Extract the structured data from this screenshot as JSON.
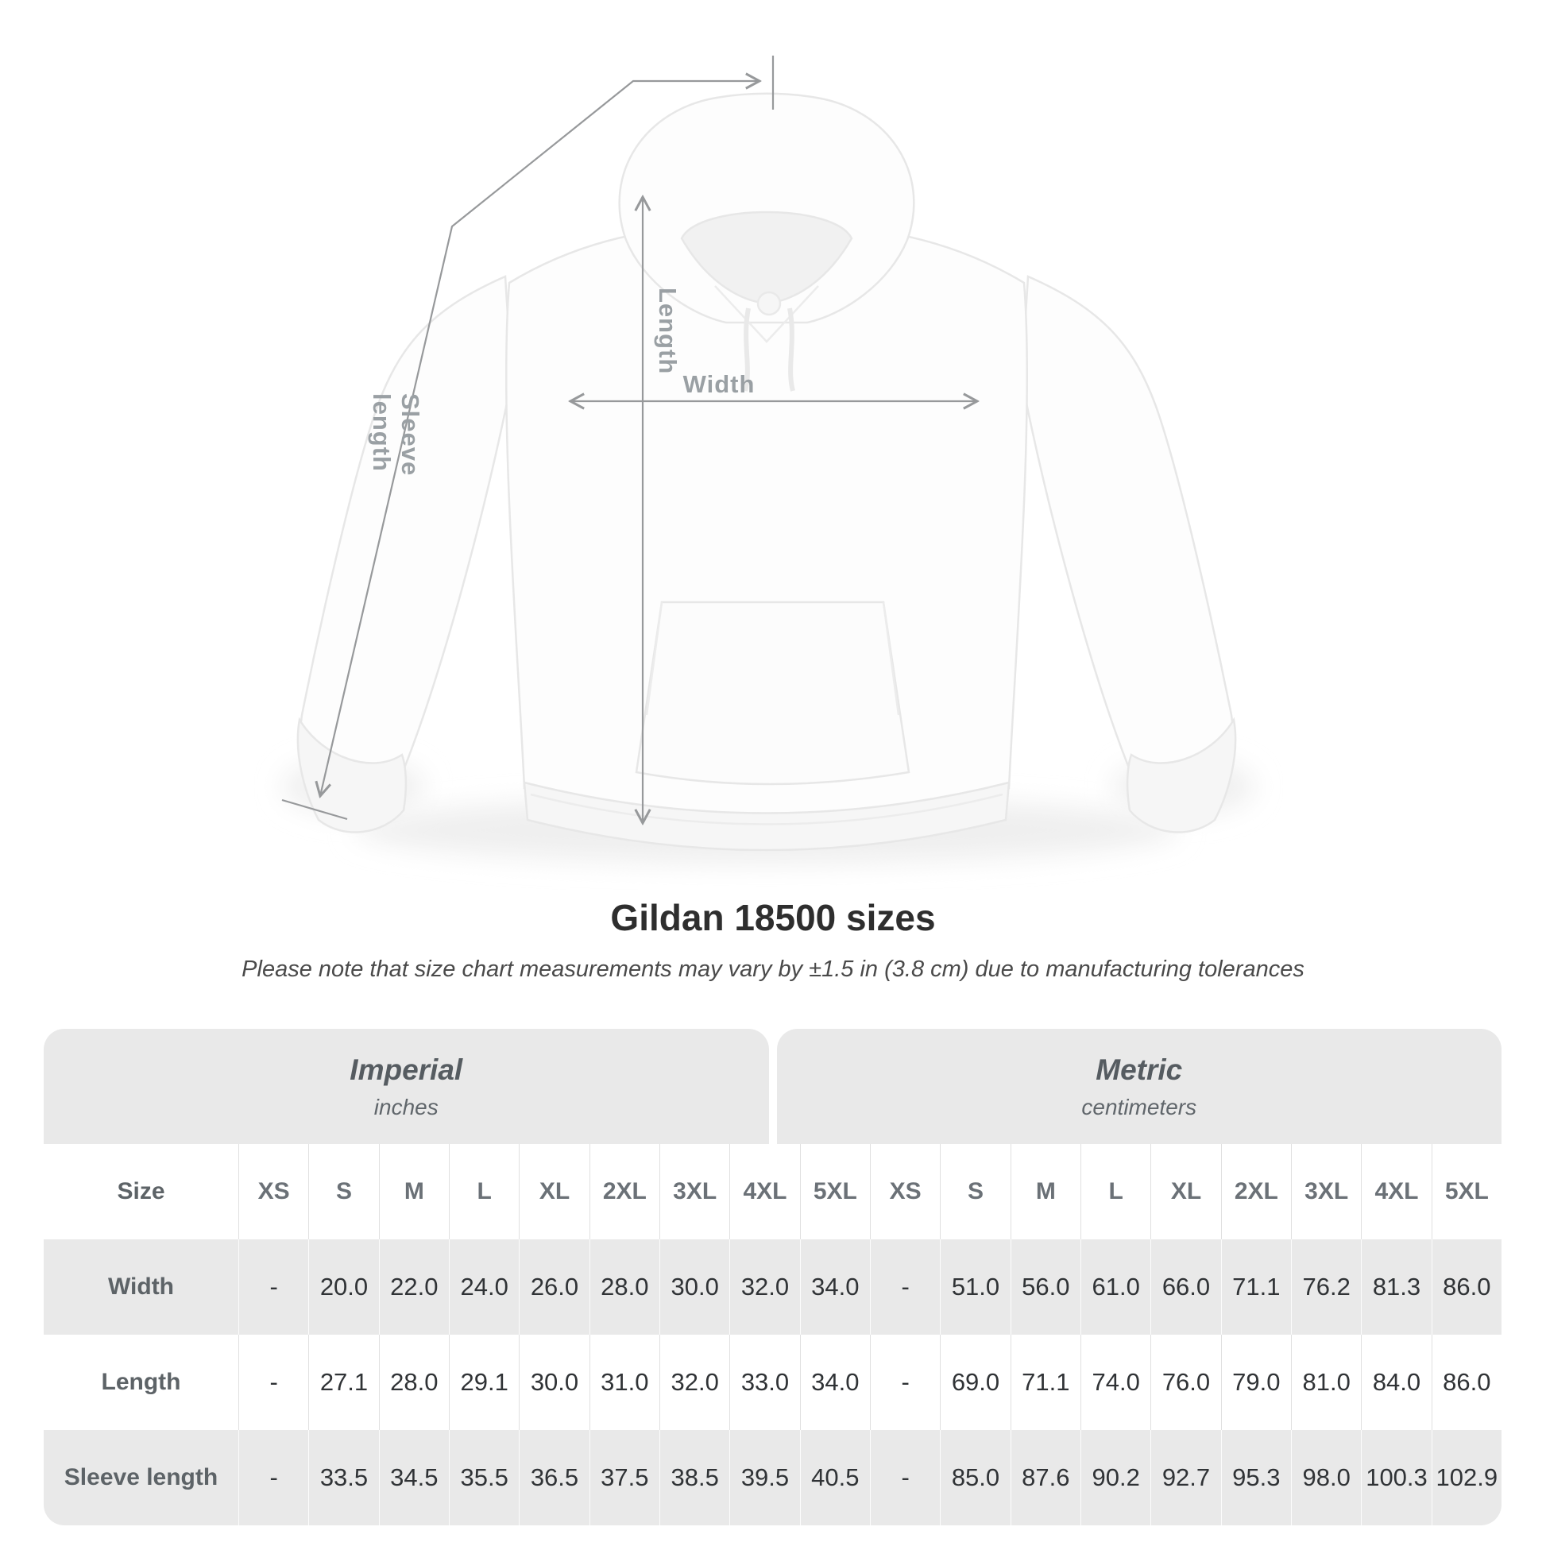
{
  "title": "Gildan 18500 sizes",
  "subtitle": "Please note that size chart measurements may vary by ±1.5 in (3.8 cm) due to manufacturing tolerances",
  "diagram": {
    "product": "white pullover hoodie (flat lay, front view)",
    "length_label": "Length",
    "width_label": "Width",
    "sleeve_label": "Sleeve length"
  },
  "table": {
    "size_header": "Size",
    "unit_groups": [
      {
        "name": "Imperial",
        "unit": "inches"
      },
      {
        "name": "Metric",
        "unit": "centimeters"
      }
    ],
    "sizes": [
      "XS",
      "S",
      "M",
      "L",
      "XL",
      "2XL",
      "3XL",
      "4XL",
      "5XL"
    ],
    "rows": [
      {
        "label": "Width",
        "imperial": [
          "-",
          "20.0",
          "22.0",
          "24.0",
          "26.0",
          "28.0",
          "30.0",
          "32.0",
          "34.0"
        ],
        "metric": [
          "-",
          "51.0",
          "56.0",
          "61.0",
          "66.0",
          "71.1",
          "76.2",
          "81.3",
          "86.0"
        ]
      },
      {
        "label": "Length",
        "imperial": [
          "-",
          "27.1",
          "28.0",
          "29.1",
          "30.0",
          "31.0",
          "32.0",
          "33.0",
          "34.0"
        ],
        "metric": [
          "-",
          "69.0",
          "71.1",
          "74.0",
          "76.0",
          "79.0",
          "81.0",
          "84.0",
          "86.0"
        ]
      },
      {
        "label": "Sleeve length",
        "imperial": [
          "-",
          "33.5",
          "34.5",
          "35.5",
          "36.5",
          "37.5",
          "38.5",
          "39.5",
          "40.5"
        ],
        "metric": [
          "-",
          "85.0",
          "87.6",
          "90.2",
          "92.7",
          "95.3",
          "98.0",
          "100.3",
          "102.9"
        ]
      }
    ]
  },
  "chart_data": {
    "type": "table",
    "title": "Gildan 18500 sizes",
    "note": "Please note that size chart measurements may vary by ±1.5 in (3.8 cm) due to manufacturing tolerances",
    "column_groups": [
      "Imperial (inches)",
      "Metric (centimeters)"
    ],
    "columns": [
      "XS",
      "S",
      "M",
      "L",
      "XL",
      "2XL",
      "3XL",
      "4XL",
      "5XL"
    ],
    "series": [
      {
        "name": "Width (in)",
        "values": [
          null,
          20.0,
          22.0,
          24.0,
          26.0,
          28.0,
          30.0,
          32.0,
          34.0
        ]
      },
      {
        "name": "Length (in)",
        "values": [
          null,
          27.1,
          28.0,
          29.1,
          30.0,
          31.0,
          32.0,
          33.0,
          34.0
        ]
      },
      {
        "name": "Sleeve length (in)",
        "values": [
          null,
          33.5,
          34.5,
          35.5,
          36.5,
          37.5,
          38.5,
          39.5,
          40.5
        ]
      },
      {
        "name": "Width (cm)",
        "values": [
          null,
          51.0,
          56.0,
          61.0,
          66.0,
          71.1,
          76.2,
          81.3,
          86.0
        ]
      },
      {
        "name": "Length (cm)",
        "values": [
          null,
          69.0,
          71.1,
          74.0,
          76.0,
          79.0,
          81.0,
          84.0,
          86.0
        ]
      },
      {
        "name": "Sleeve length (cm)",
        "values": [
          null,
          85.0,
          87.6,
          90.2,
          92.7,
          95.3,
          98.0,
          100.3,
          102.9
        ]
      }
    ]
  },
  "colors": {
    "measure_line": "#97999b",
    "measure_label": "#9aa0a4",
    "title_text": "#2e2e2e",
    "subtitle_text": "#4a4a4a",
    "band_gray": "#e9e9e9",
    "unit_header_text": "#565c61",
    "row_label_text": "#5d6367",
    "value_text": "#303336"
  }
}
